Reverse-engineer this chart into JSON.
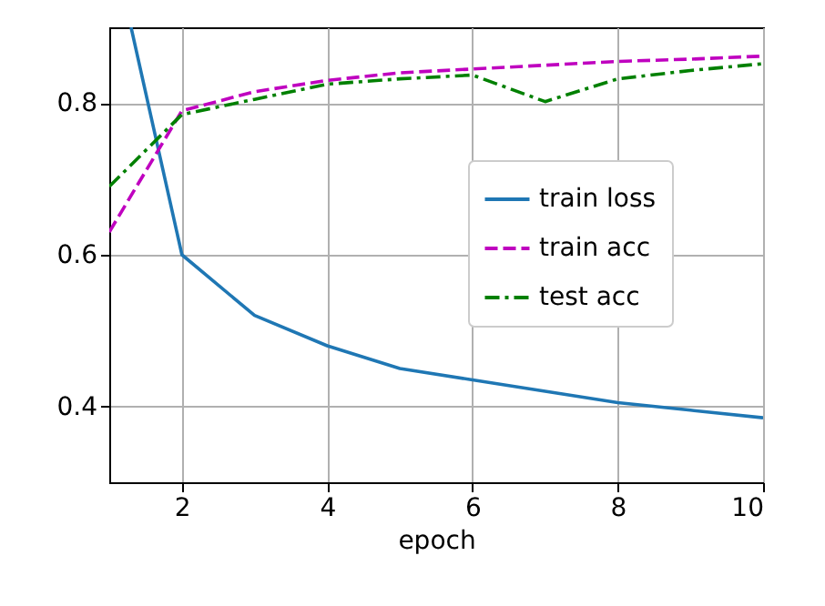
{
  "chart_data": {
    "type": "line",
    "xlabel": "epoch",
    "x": [
      1,
      2,
      3,
      4,
      5,
      6,
      7,
      8,
      9,
      10
    ],
    "series": [
      {
        "name": "train loss",
        "color": "#1f77b4",
        "line_style": "solid",
        "x": [
          1.3,
          2,
          3,
          4,
          5,
          6,
          7,
          8,
          9,
          10
        ],
        "values": [
          0.9,
          0.6,
          0.52,
          0.48,
          0.45,
          0.435,
          0.42,
          0.405,
          0.395,
          0.385
        ]
      },
      {
        "name": "train acc",
        "color": "#bf00bf",
        "line_style": "dashed",
        "values": [
          0.63,
          0.79,
          0.815,
          0.83,
          0.84,
          0.845,
          0.85,
          0.855,
          0.858,
          0.862
        ]
      },
      {
        "name": "test acc",
        "color": "#008000",
        "line_style": "dashdot",
        "values": [
          0.69,
          0.785,
          0.805,
          0.825,
          0.832,
          0.837,
          0.802,
          0.832,
          0.843,
          0.852
        ]
      }
    ],
    "xlim": [
      1,
      10
    ],
    "xticks": [
      2,
      4,
      6,
      8,
      10
    ],
    "ylim": [
      0.3,
      0.9
    ],
    "yticks": [
      0.4,
      0.6,
      0.8
    ],
    "grid": true,
    "legend": "right"
  }
}
